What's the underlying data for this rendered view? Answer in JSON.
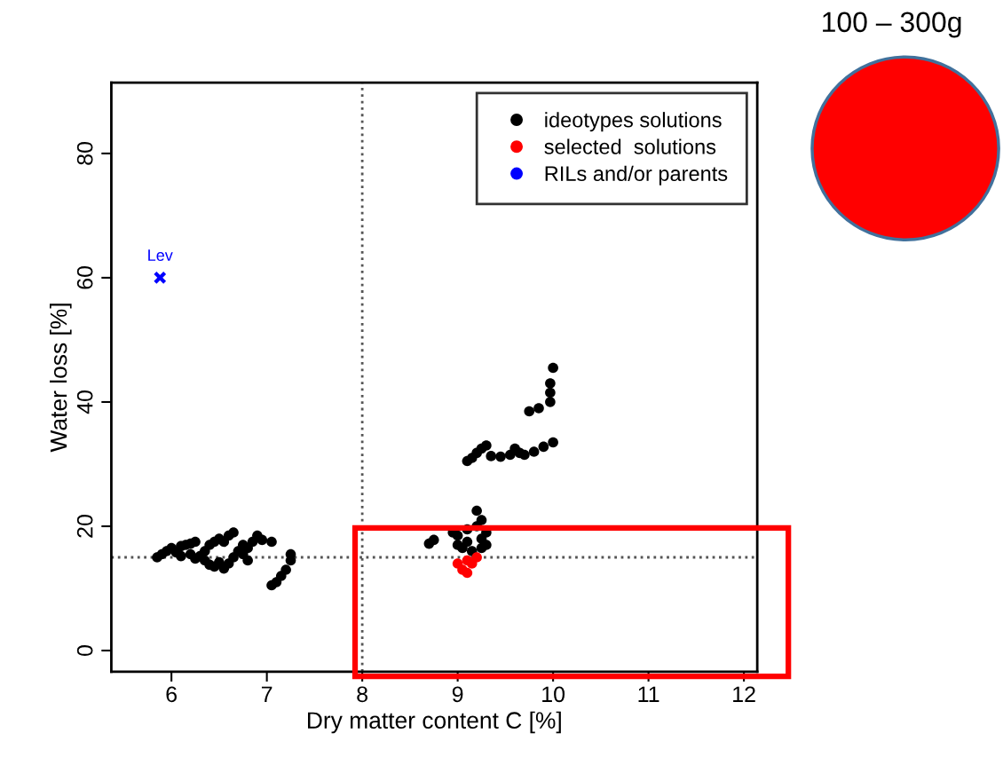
{
  "chart_data": {
    "type": "scatter",
    "xlabel": "Dry matter content C [%]",
    "ylabel": "Water loss [%]",
    "xlim": [
      5.37,
      12.14
    ],
    "ylim": [
      -3.4,
      91.4
    ],
    "xticks": [
      6,
      7,
      8,
      9,
      10,
      11,
      12
    ],
    "yticks": [
      0,
      20,
      40,
      60,
      80
    ],
    "grid": false,
    "legend": "top right",
    "marker": "circle",
    "series": [
      {
        "name": "ideotypes solutions",
        "color": "#000000",
        "x": [
          5.85,
          5.9,
          5.95,
          6.0,
          6.05,
          6.1,
          6.15,
          6.2,
          6.25,
          6.1,
          6.2,
          6.25,
          6.3,
          6.35,
          6.4,
          6.45,
          6.5,
          6.55,
          6.35,
          6.4,
          6.45,
          6.5,
          6.55,
          6.6,
          6.65,
          6.7,
          6.75,
          6.8,
          6.85,
          6.9,
          6.95,
          6.6,
          6.65,
          7.05,
          6.75,
          6.8,
          7.25,
          7.25,
          7.2,
          7.15,
          7.1,
          7.05,
          9.1,
          9.15,
          9.2,
          9.25,
          9.3,
          9.35,
          9.45,
          9.55,
          9.6,
          9.65,
          9.7,
          9.8,
          9.9,
          10.0,
          9.75,
          9.85,
          9.97,
          9.97,
          9.97,
          10.0,
          8.7,
          8.75,
          8.95,
          9.0,
          9.1,
          9.2,
          9.25,
          9.2,
          9.3,
          9.25,
          9.05,
          9.0,
          9.15,
          9.3,
          9.25,
          9.1
        ],
        "values": [
          15,
          15.5,
          16,
          16.5,
          15.8,
          16.8,
          17,
          17.2,
          17.5,
          15.2,
          15.5,
          14.8,
          15.2,
          16,
          17,
          17.5,
          18,
          17.5,
          14.5,
          13.8,
          13.5,
          14.2,
          13.2,
          14,
          15,
          16,
          17,
          16.5,
          17.5,
          18.5,
          17.8,
          18.5,
          19,
          17.5,
          15.5,
          14.5,
          15.5,
          14.5,
          13,
          12,
          11,
          10.5,
          30.5,
          31,
          31.8,
          32.5,
          33,
          31.3,
          31.2,
          31.5,
          32.5,
          31.8,
          31.5,
          32,
          32.8,
          33.5,
          38.5,
          39,
          40,
          41.5,
          43,
          45.5,
          17.2,
          17.8,
          19,
          18.5,
          19.5,
          20,
          21,
          22.5,
          19,
          18,
          16.5,
          17,
          16,
          17,
          16.5,
          17.5
        ]
      },
      {
        "name": "selected  solutions",
        "color": "#ff0000",
        "x": [
          9.05,
          9.1,
          9.15,
          9.2,
          9.1,
          9.0
        ],
        "values": [
          13,
          12.5,
          14,
          15,
          14.5,
          14
        ]
      },
      {
        "name": "RILs and/or parents",
        "color": "#0000ff",
        "marker": "cross",
        "x": [
          5.88
        ],
        "values": [
          60
        ]
      }
    ],
    "ref_lines": [
      {
        "axis": "x",
        "value": 8,
        "line_style": "dotted",
        "color": "#555555"
      },
      {
        "axis": "y",
        "value": 15,
        "line_style": "dotted",
        "color": "#555555"
      }
    ],
    "annotations": [
      {
        "text": "Lev",
        "x": 5.88,
        "y": 60
      },
      "100 – 300g"
    ]
  }
}
